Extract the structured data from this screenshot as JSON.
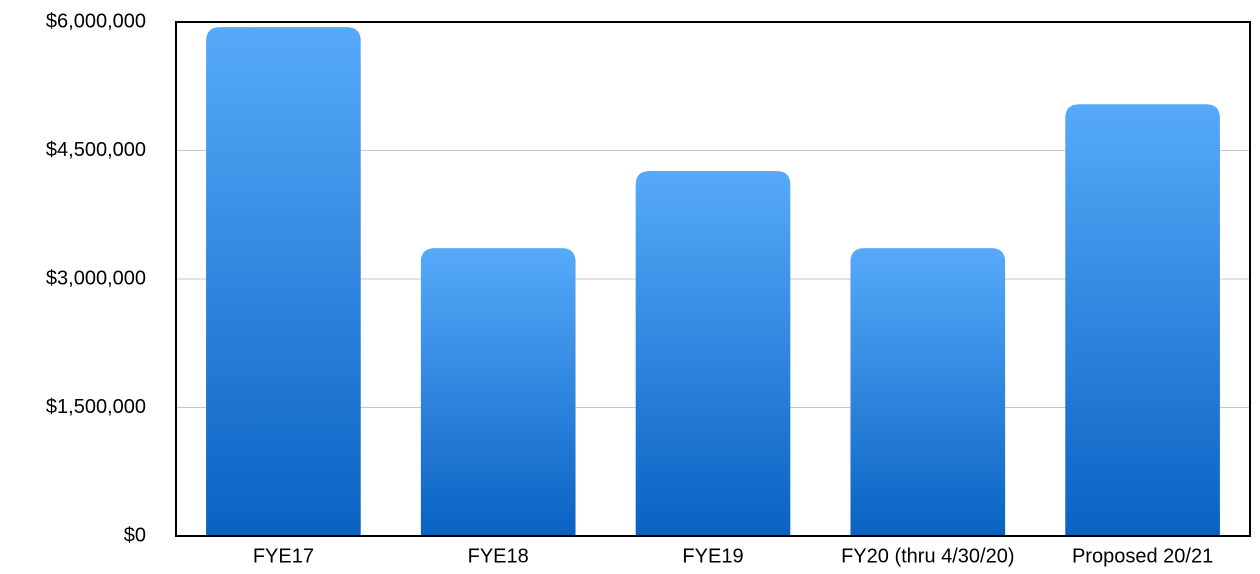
{
  "chart_data": {
    "type": "bar",
    "categories": [
      "FYE17",
      "FYE18",
      "FYE19",
      "FY20 (thru 4/30/20)",
      "Proposed 20/21"
    ],
    "values": [
      5940000,
      3360000,
      4260000,
      3360000,
      5040000
    ],
    "color": "#1a74d6",
    "ylim": [
      0,
      6000000
    ],
    "yticks": [
      {
        "value": 0,
        "label": "$0"
      },
      {
        "value": 1500000,
        "label": "$1,500,000"
      },
      {
        "value": 3000000,
        "label": "$3,000,000"
      },
      {
        "value": 4500000,
        "label": "$4,500,000"
      },
      {
        "value": 6000000,
        "label": "$6,000,000"
      }
    ],
    "grid": true
  }
}
